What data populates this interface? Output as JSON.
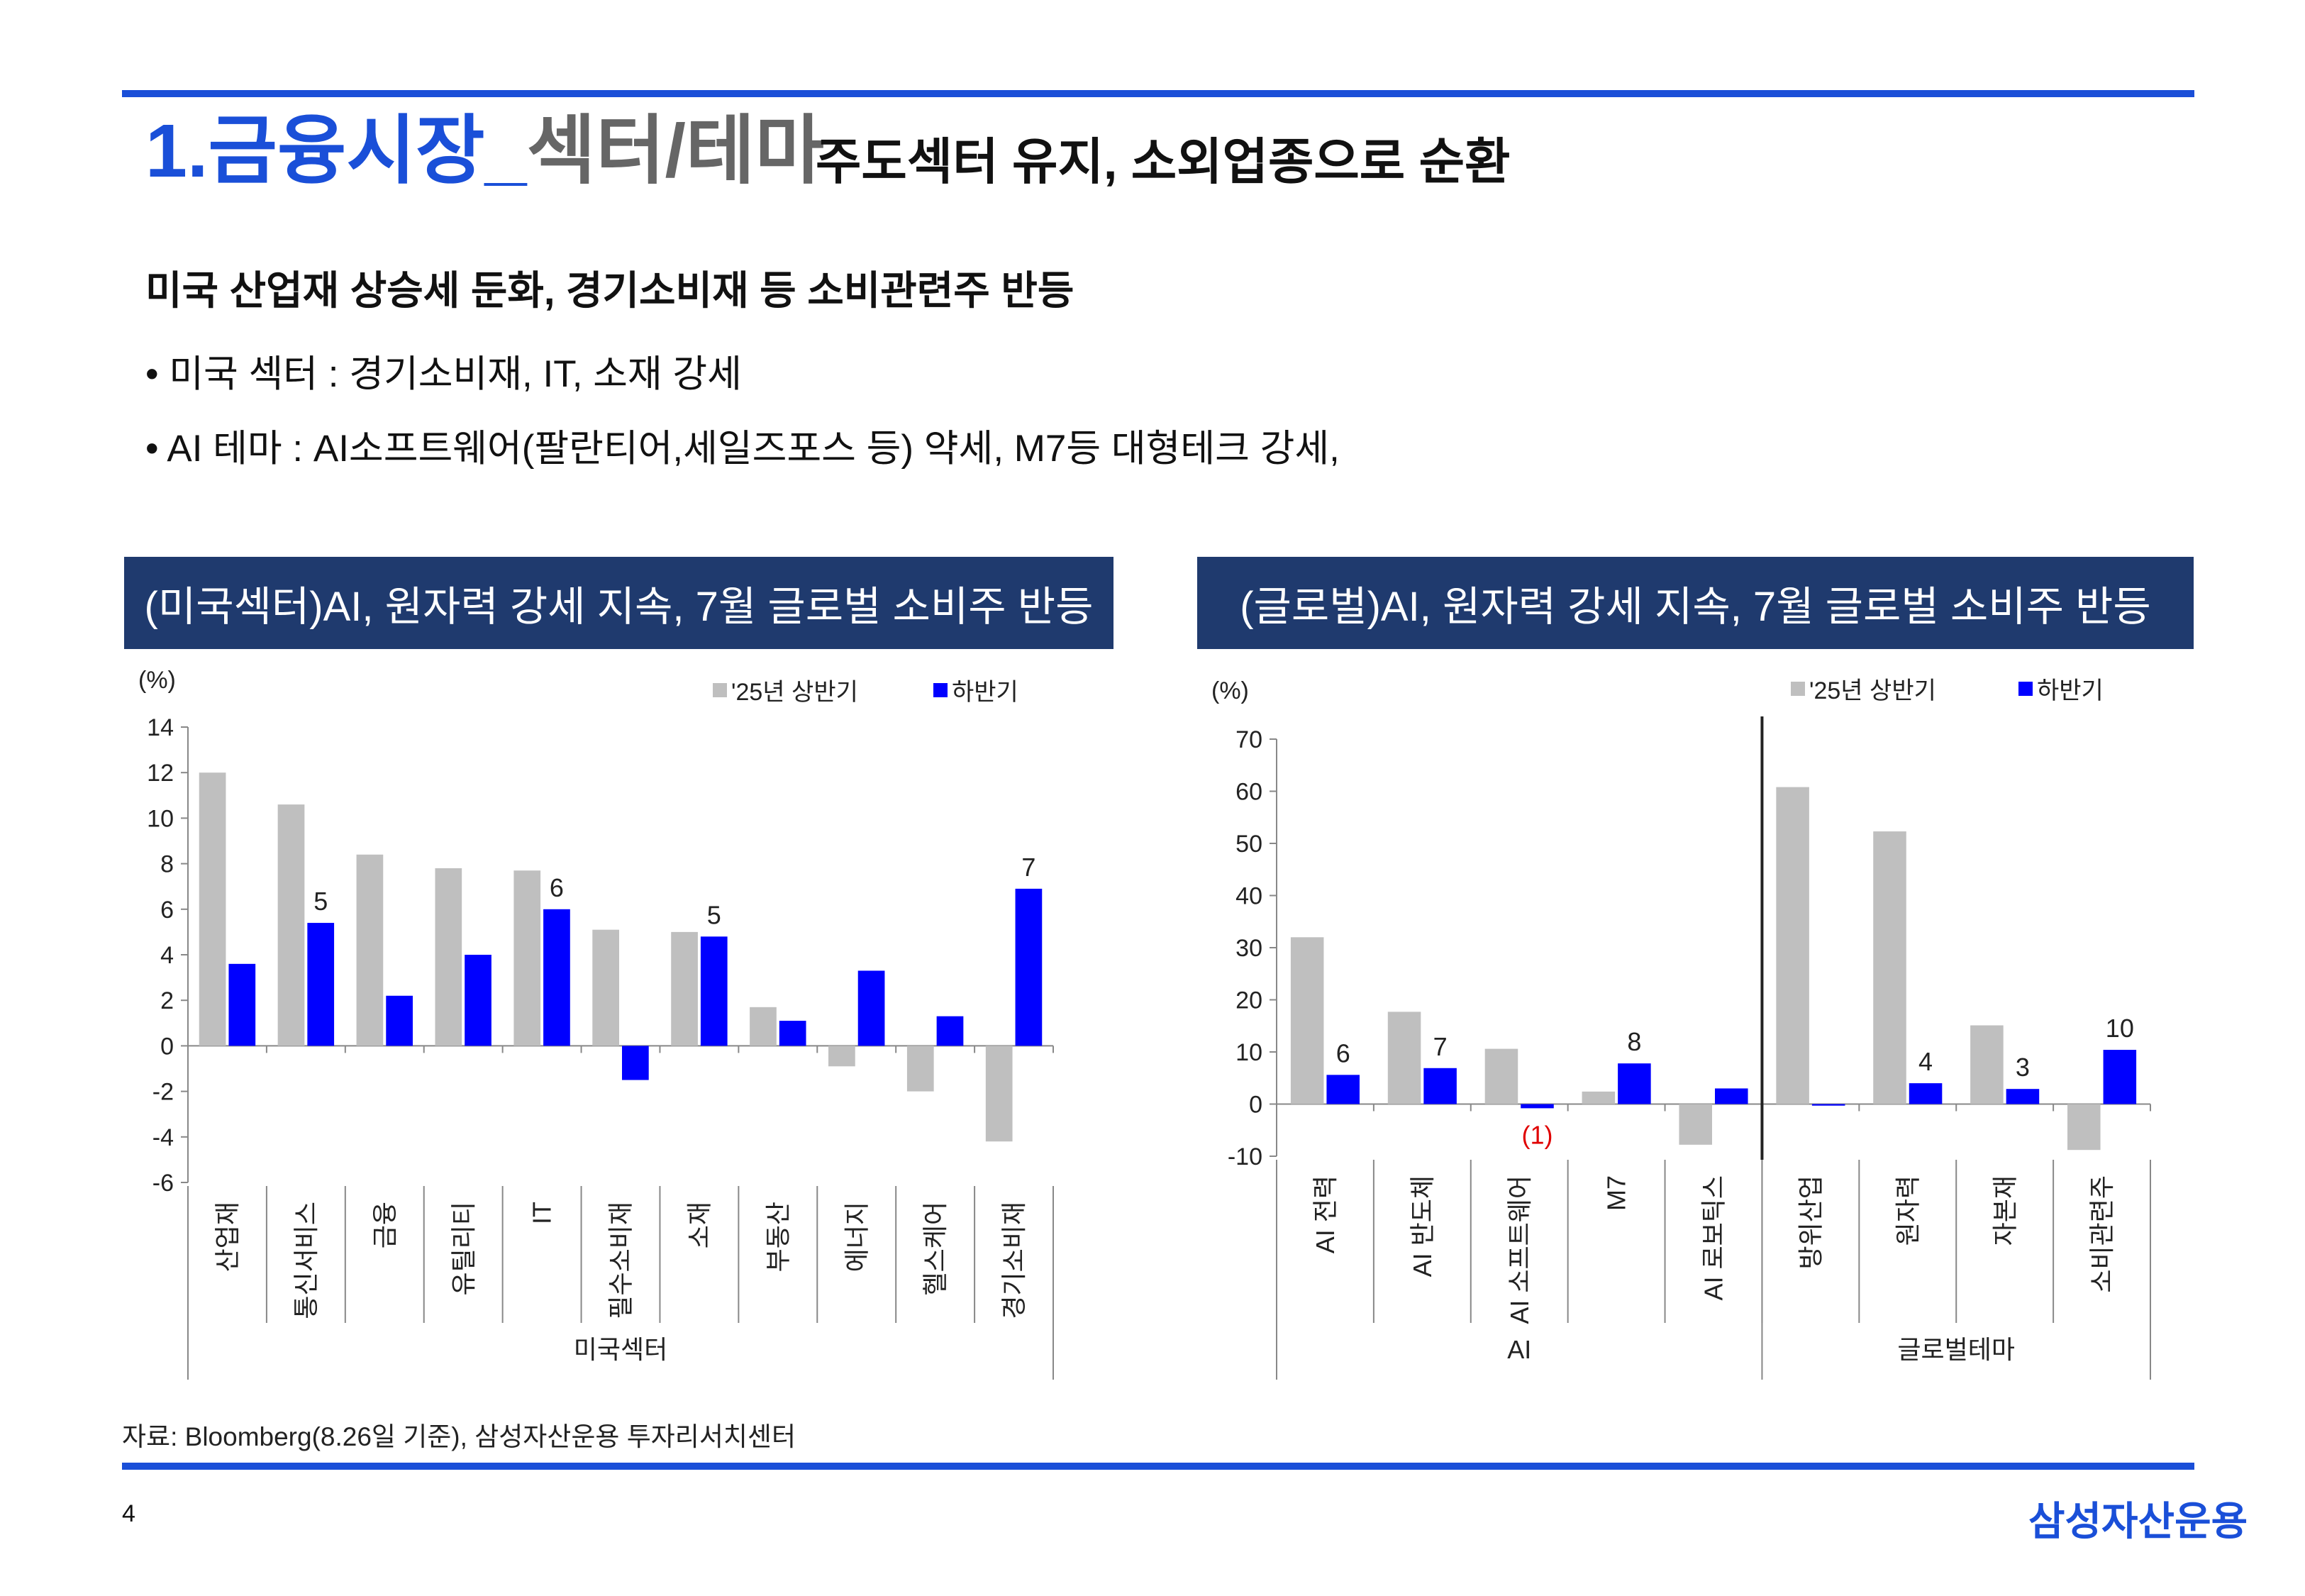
{
  "header": {
    "title_prefix": "1.금융시장_",
    "title_section": "섹터/테마",
    "subtitle": "주도섹터 유지, 소외업종으로 순환"
  },
  "heading": "미국 산업재 상승세 둔화, 경기소비재 등 소비관련주 반등",
  "bullets": [
    "• 미국 섹터 : 경기소비재, IT, 소재 강세",
    "• AI 테마 : AI소프트웨어(팔란티어,세일즈포스 등) 약세, M7등 대형테크 강세,"
  ],
  "colors": {
    "accent": "#1a4fd8",
    "panel": "#1f3a6e",
    "series1": "#bfbfbf",
    "series2": "#0000ff",
    "negative_label": "#e00000"
  },
  "chart_data": [
    {
      "type": "bar",
      "panel_title": "(미국섹터)AI, 원자력 강세 지속, 7월 글로벌 소비주 반등",
      "unit_label": "(%)",
      "legend": [
        "'25년 상반기",
        "하반기"
      ],
      "categories": [
        "산업재",
        "통신서비스",
        "금융",
        "유틸리티",
        "IT",
        "필수소비재",
        "소재",
        "부동산",
        "에너지",
        "헬스케어",
        "경기소비재"
      ],
      "group_label": "미국섹터",
      "series": [
        {
          "name": "'25년 상반기",
          "values": [
            12,
            10.6,
            8.4,
            7.8,
            7.7,
            5.1,
            5.0,
            1.7,
            -0.9,
            -2.0,
            -4.2
          ]
        },
        {
          "name": "하반기",
          "values": [
            3.6,
            5.4,
            2.2,
            4.0,
            6.0,
            -1.5,
            4.8,
            1.1,
            3.3,
            1.3,
            6.9
          ]
        }
      ],
      "data_labels": [
        "",
        "5",
        "",
        "",
        "6",
        "",
        "5",
        "",
        "",
        "",
        "7"
      ],
      "yticks": [
        "14",
        "12",
        "10",
        "8",
        "6",
        "4",
        "2",
        "0",
        "-2",
        "-4",
        "-6"
      ],
      "ylim": [
        -6,
        14
      ]
    },
    {
      "type": "bar",
      "panel_title": "(글로벌)AI, 원자력 강세 지속, 7월 글로벌 소비주 반등",
      "unit_label": "(%)",
      "legend": [
        "'25년 상반기",
        "하반기"
      ],
      "categories": [
        "AI 전력",
        "AI 반도체",
        "AI 소프트웨어",
        "M7",
        "AI 로보틱스",
        "방위산업",
        "원자력",
        "자본재",
        "소비관련주"
      ],
      "groups": [
        {
          "label": "AI",
          "count": 5
        },
        {
          "label": "글로벌테마",
          "count": 4
        }
      ],
      "series": [
        {
          "name": "'25년 상반기",
          "values": [
            32,
            17.7,
            10.6,
            2.4,
            -7.8,
            60.8,
            52.3,
            15.1,
            -8.8
          ]
        },
        {
          "name": "하반기",
          "values": [
            5.6,
            6.9,
            -0.8,
            7.8,
            3.0,
            -0.3,
            4.0,
            2.9,
            10.4
          ]
        }
      ],
      "data_labels": [
        "6",
        "7",
        "(1)",
        "8",
        "",
        "",
        "4",
        "3",
        "10"
      ],
      "yticks": [
        "70",
        "60",
        "50",
        "40",
        "30",
        "20",
        "10",
        "0",
        "-10"
      ],
      "ylim": [
        -10,
        70
      ]
    }
  ],
  "footer": {
    "source": "자료: Bloomberg(8.26일 기준), 삼성자산운용 투자리서치센터",
    "page": "4",
    "logo": "삼성자산운용"
  }
}
